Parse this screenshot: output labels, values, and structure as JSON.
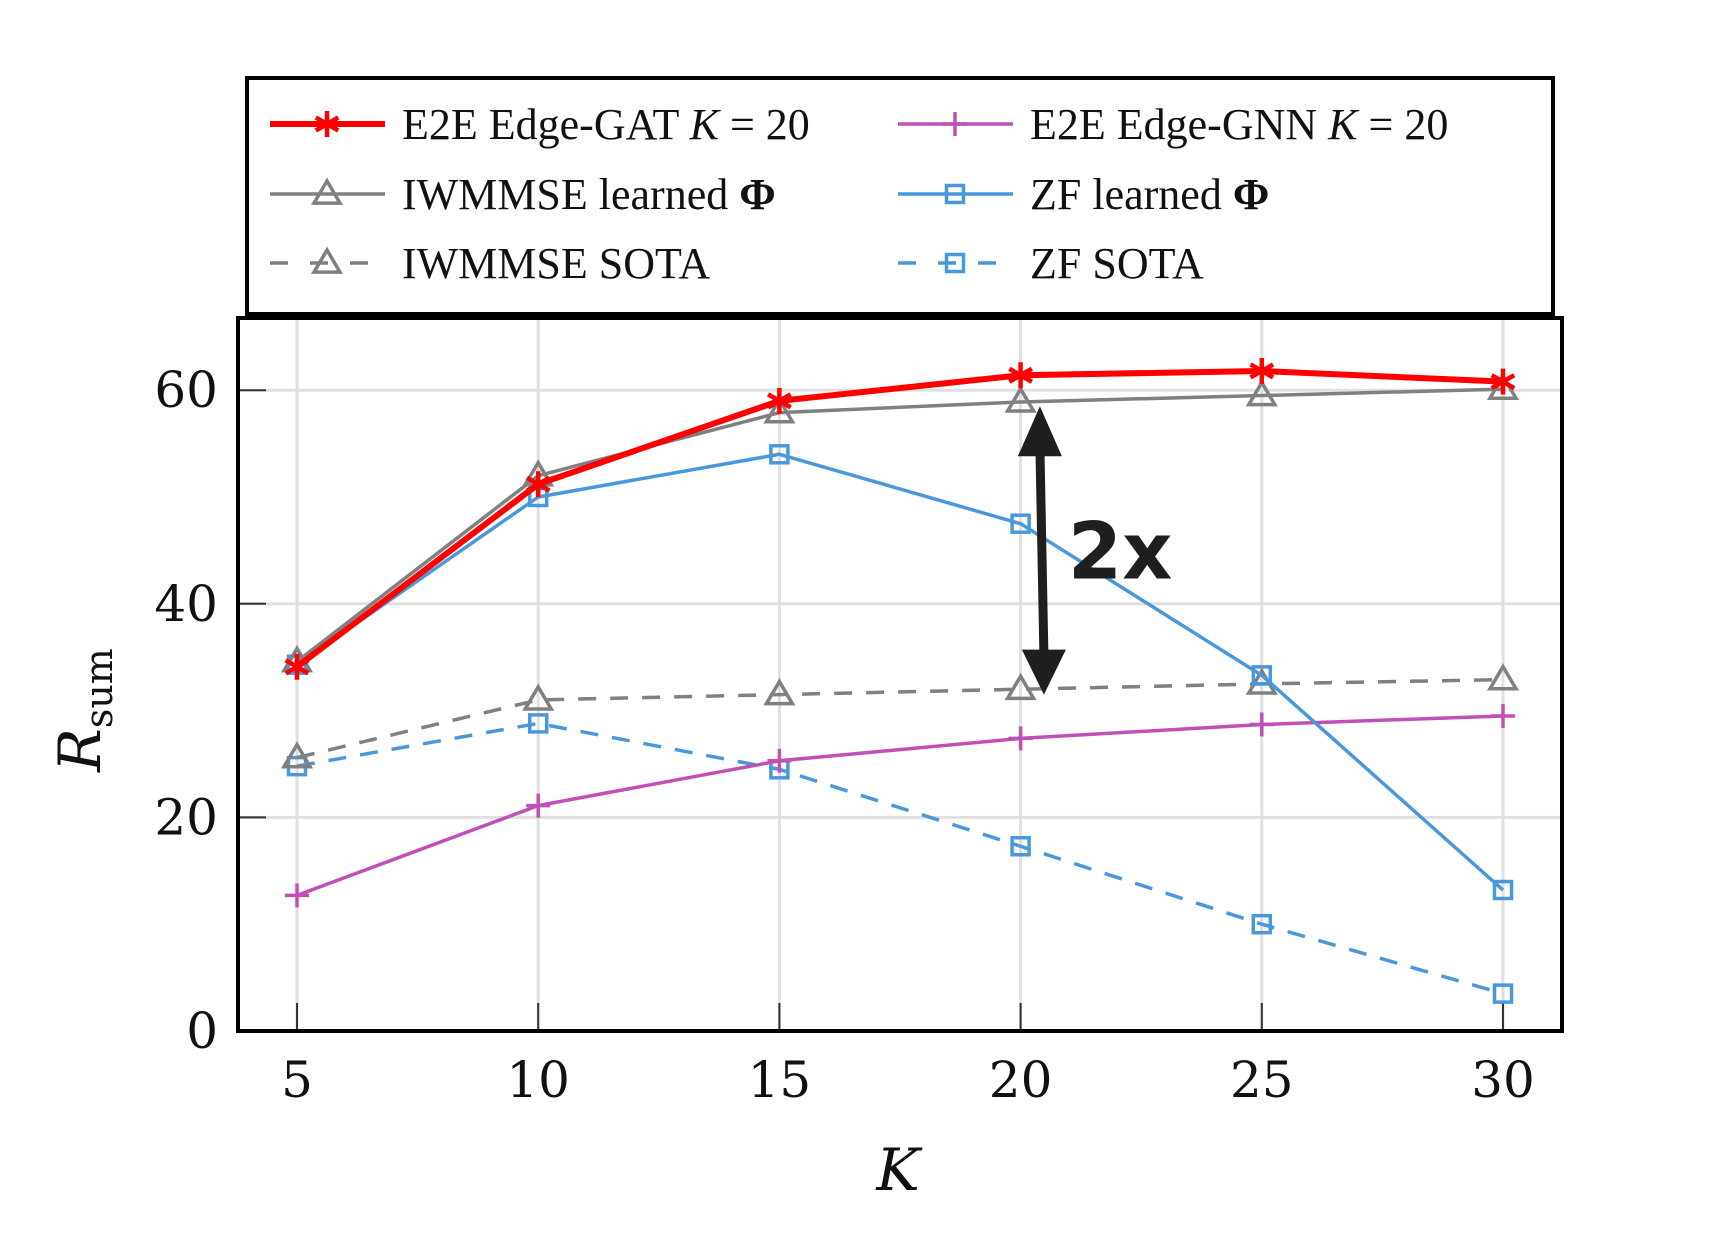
{
  "chart_data": {
    "type": "line",
    "title": "",
    "xlabel": "K",
    "ylabel": "R",
    "ylabel_subscript": "sum",
    "x": [
      5,
      10,
      15,
      20,
      25,
      30
    ],
    "xlim": [
      3.8,
      31.2
    ],
    "ylim": [
      0,
      66.5
    ],
    "xticks": [
      5,
      10,
      15,
      20,
      25,
      30
    ],
    "yticks": [
      0,
      20,
      40,
      60
    ],
    "grid": true,
    "legend_position": "top-outside",
    "series": [
      {
        "name": "E2E Edge-GAT K = 20",
        "label_parts": [
          "E2E Edge-GAT ",
          "K",
          " = 20"
        ],
        "color": "#ff0000",
        "dash": "solid",
        "marker": "asterisk",
        "width": "thick",
        "values": [
          34.1,
          51.2,
          59.0,
          61.4,
          61.8,
          60.8
        ]
      },
      {
        "name": "E2E Edge-GNN K = 20",
        "label_parts": [
          "E2E Edge-GNN ",
          "K",
          " = 20"
        ],
        "color": "#c050b5",
        "dash": "solid",
        "marker": "plus",
        "width": "normal",
        "values": [
          12.7,
          21.1,
          25.3,
          27.4,
          28.7,
          29.5
        ]
      },
      {
        "name": "IWMMSE learned Φ",
        "label_parts": [
          "IWMMSE learned ",
          "",
          "Φ"
        ],
        "color": "#808080",
        "dash": "solid",
        "marker": "triangle",
        "width": "normal",
        "values": [
          34.6,
          52.0,
          57.9,
          58.9,
          59.5,
          60.1
        ]
      },
      {
        "name": "ZF learned Φ",
        "label_parts": [
          "ZF learned ",
          "",
          "Φ"
        ],
        "color": "#4a98dc",
        "dash": "solid",
        "marker": "square",
        "width": "normal",
        "values": [
          34.3,
          50.0,
          54.0,
          47.5,
          33.3,
          13.2
        ]
      },
      {
        "name": "IWMMSE SOTA",
        "label_parts": [
          "IWMMSE SOTA",
          "",
          ""
        ],
        "color": "#808080",
        "dash": "dashed",
        "marker": "triangle",
        "width": "normal",
        "values": [
          25.6,
          31.0,
          31.5,
          32.0,
          32.5,
          32.9
        ]
      },
      {
        "name": "ZF SOTA",
        "label_parts": [
          "ZF SOTA",
          "",
          ""
        ],
        "color": "#4a98dc",
        "dash": "dashed",
        "marker": "square",
        "width": "normal",
        "values": [
          24.8,
          28.8,
          24.5,
          17.3,
          10.0,
          3.5
        ]
      }
    ],
    "annotations": [
      {
        "type": "double-arrow",
        "x": 20.4,
        "y_from": 58.5,
        "y_to": 31.5,
        "text": "2x",
        "color": "#1f1f1f"
      }
    ]
  }
}
